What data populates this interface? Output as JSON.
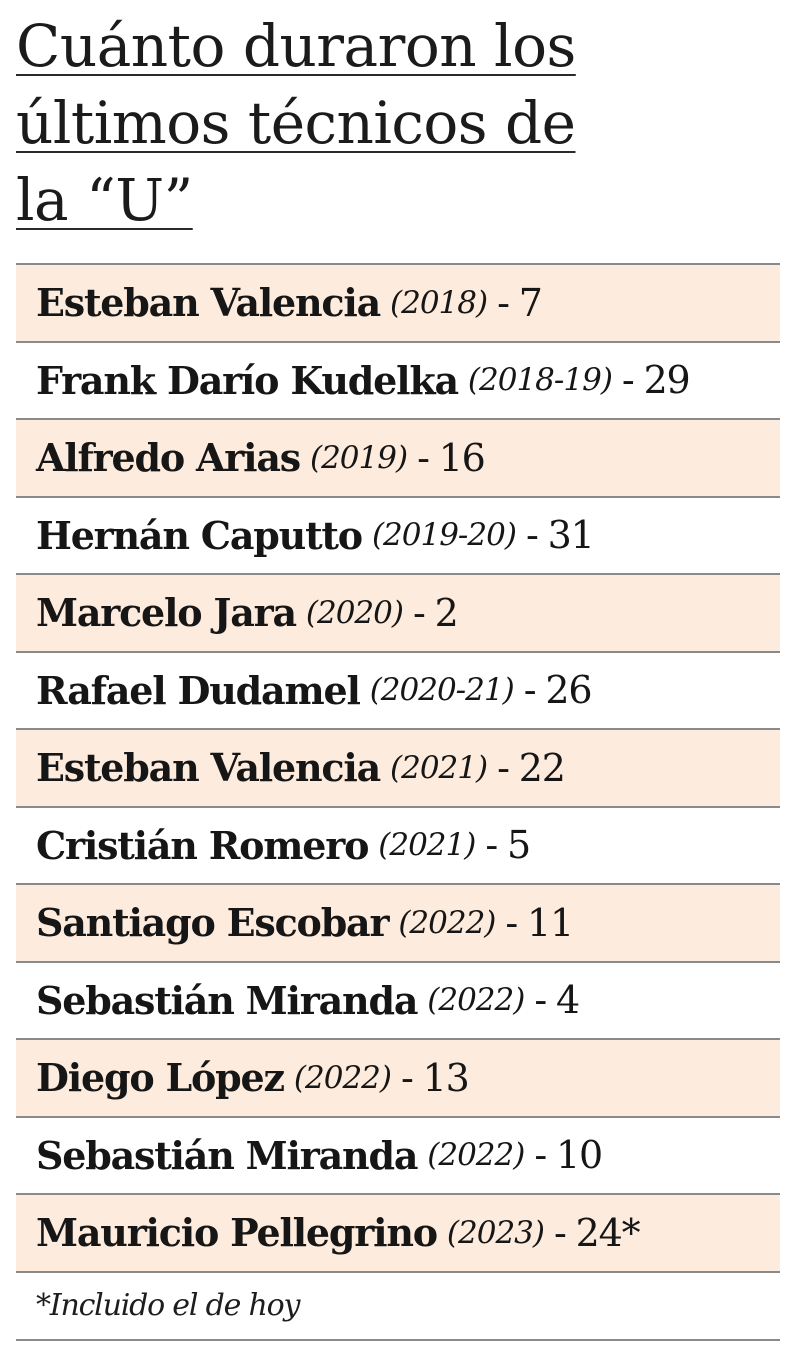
{
  "title": {
    "line1": "Cuánto duraron los",
    "line2": "últimos técnicos de",
    "line3": "la “U”"
  },
  "coaches": [
    {
      "name": "Esteban Valencia",
      "years": "(2018)",
      "separator": "-",
      "count": "7"
    },
    {
      "name": "Frank Darío Kudelka",
      "years": "(2018-19)",
      "separator": "-",
      "count": "29"
    },
    {
      "name": "Alfredo Arias",
      "years": "(2019)",
      "separator": "-",
      "count": "16"
    },
    {
      "name": "Hernán Caputto",
      "years": "(2019-20)",
      "separator": "-",
      "count": "31"
    },
    {
      "name": "Marcelo Jara",
      "years": "(2020)",
      "separator": "-",
      "count": "2"
    },
    {
      "name": "Rafael Dudamel",
      "years": "(2020-21)",
      "separator": "-",
      "count": "26"
    },
    {
      "name": "Esteban Valencia",
      "years": "(2021)",
      "separator": "-",
      "count": "22"
    },
    {
      "name": "Cristián Romero",
      "years": "(2021)",
      "separator": "-",
      "count": "5"
    },
    {
      "name": "Santiago Escobar",
      "years": "(2022)",
      "separator": "-",
      "count": "11"
    },
    {
      "name": "Sebastián Miranda",
      "years": "(2022)",
      "separator": "-",
      "count": "4"
    },
    {
      "name": "Diego López",
      "years": "(2022)",
      "separator": "-",
      "count": "13"
    },
    {
      "name": "Sebastián Miranda",
      "years": "(2022)",
      "separator": "-",
      "count": "10"
    },
    {
      "name": "Mauricio Pellegrino",
      "years": "(2023)",
      "separator": "-",
      "count": "24*"
    }
  ],
  "footnote": "*Incluido el de hoy",
  "colors": {
    "row_shade": "#fdebdd",
    "rule": "#8a8a8a",
    "text": "#161616"
  }
}
